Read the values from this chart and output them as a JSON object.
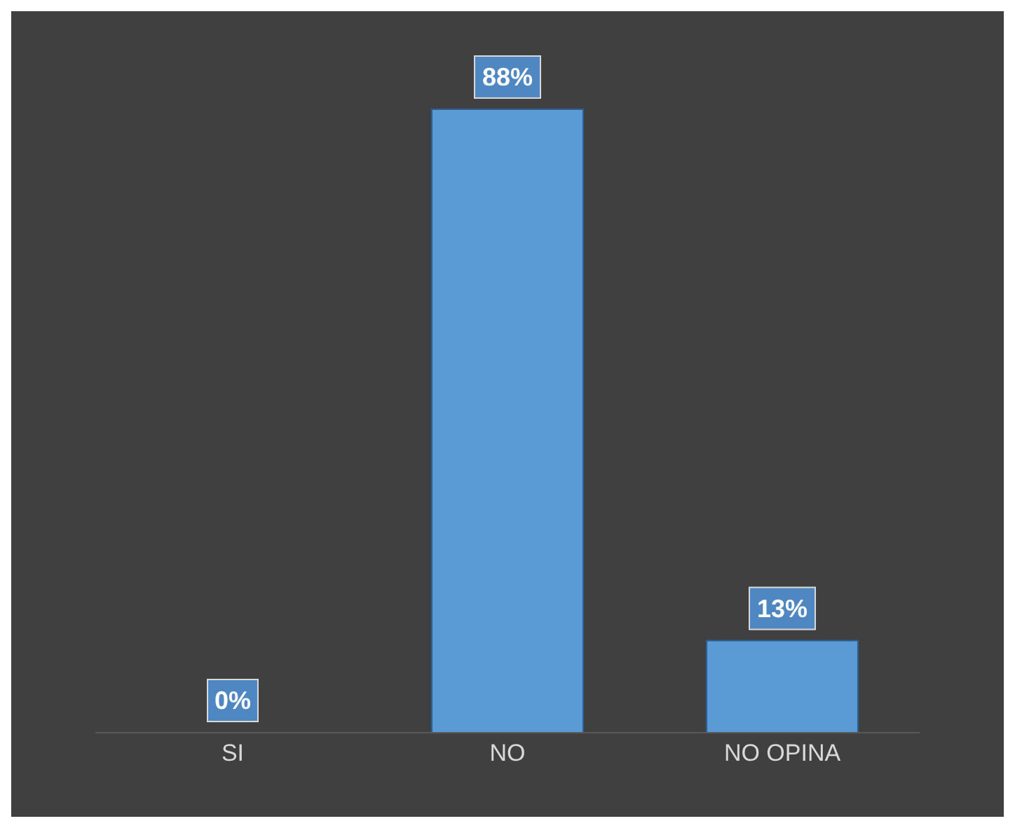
{
  "chart_data": {
    "type": "bar",
    "categories": [
      "SI",
      "NO",
      "NO OPINA"
    ],
    "values": [
      0,
      88,
      13
    ],
    "value_labels": [
      "0%",
      "88%",
      "13%"
    ],
    "color": "#5b9bd5",
    "grid": false,
    "legend": false
  }
}
